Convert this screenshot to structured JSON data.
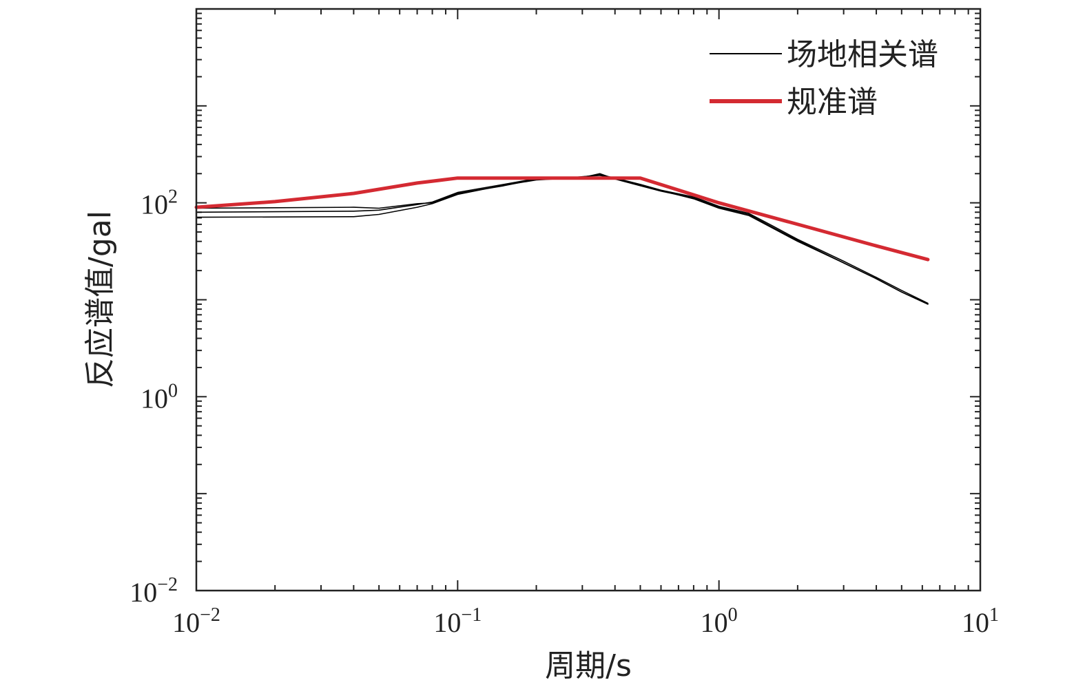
{
  "chart_data": {
    "type": "line",
    "scale": {
      "x": "log",
      "y": "log"
    },
    "xlim": [
      0.01,
      10
    ],
    "ylim": [
      0.01,
      10000
    ],
    "xlabel": "周期/s",
    "ylabel": "反应谱值/gal",
    "x_ticks": [
      {
        "value": 0.01,
        "base": "10",
        "exp": "−2"
      },
      {
        "value": 0.1,
        "base": "10",
        "exp": "−1"
      },
      {
        "value": 1,
        "base": "10",
        "exp": "0"
      },
      {
        "value": 10,
        "base": "10",
        "exp": "1"
      }
    ],
    "y_ticks": [
      {
        "value": 0.01,
        "base": "10",
        "exp": "−2"
      },
      {
        "value": 1,
        "base": "10",
        "exp": "0"
      },
      {
        "value": 100,
        "base": "10",
        "exp": "2"
      }
    ],
    "legend": {
      "position": "top-right"
    },
    "series": [
      {
        "name": "场地相关谱",
        "color": "#000000",
        "x": [
          0.01,
          0.04,
          0.05,
          0.07,
          0.08,
          0.1,
          0.15,
          0.2,
          0.25,
          0.3,
          0.35,
          0.4,
          0.5,
          0.6,
          0.8,
          1.0,
          1.3,
          1.6,
          2.0,
          3.0,
          4.0,
          5.0,
          6.3
        ],
        "y": [
          88,
          90,
          88,
          98,
          100,
          125,
          150,
          175,
          180,
          185,
          195,
          180,
          155,
          135,
          115,
          92,
          78,
          58,
          42,
          25,
          17,
          12.5,
          9.2
        ]
      },
      {
        "name": "",
        "color": "#000000",
        "x": [
          0.01,
          0.04,
          0.05,
          0.07,
          0.08,
          0.1,
          0.15,
          0.2,
          0.25,
          0.3,
          0.35,
          0.4,
          0.5,
          0.6,
          0.8,
          1.0,
          1.3,
          1.6,
          2.0,
          3.0,
          4.0,
          5.0,
          6.3
        ],
        "y": [
          80,
          82,
          84,
          96,
          102,
          128,
          155,
          178,
          176,
          182,
          200,
          176,
          150,
          132,
          112,
          90,
          76,
          56,
          41,
          24,
          16.5,
          12,
          9
        ],
        "hidden_from_legend": true
      },
      {
        "name": "",
        "color": "#000000",
        "x": [
          0.01,
          0.04,
          0.05,
          0.07,
          0.08,
          0.1,
          0.15,
          0.2,
          0.25,
          0.3,
          0.35,
          0.4,
          0.5,
          0.6,
          0.8,
          1.0,
          1.3,
          1.6,
          2.0,
          3.0,
          4.0,
          5.0,
          6.3
        ],
        "y": [
          71,
          72,
          76,
          90,
          98,
          122,
          152,
          172,
          178,
          186,
          192,
          178,
          152,
          134,
          110,
          88,
          74,
          55,
          40,
          24,
          16.5,
          12,
          9
        ],
        "hidden_from_legend": true
      },
      {
        "name": "规准谱",
        "color": "#d42a32",
        "x": [
          0.01,
          0.02,
          0.04,
          0.07,
          0.1,
          0.2,
          0.3,
          0.5,
          1.0,
          2.0,
          4.0,
          6.3
        ],
        "y": [
          90,
          103,
          125,
          160,
          180,
          180,
          180,
          180,
          100,
          60,
          36,
          26
        ]
      }
    ]
  }
}
